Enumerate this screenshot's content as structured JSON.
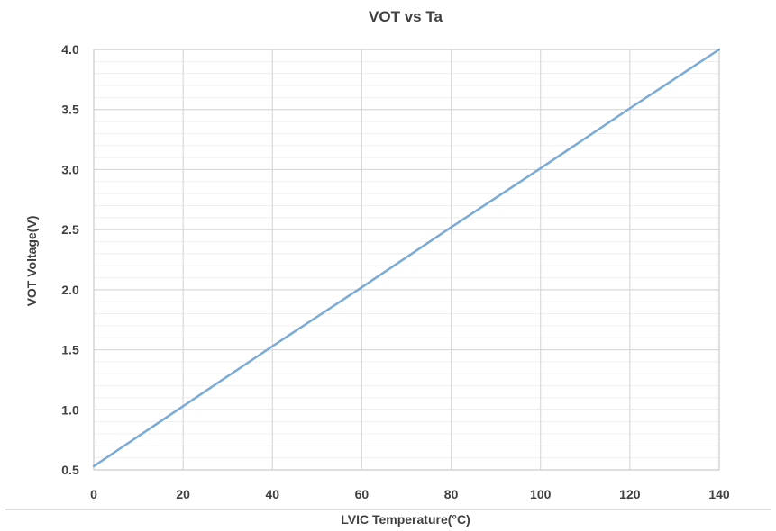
{
  "chart_data": {
    "type": "line",
    "title": "VOT vs Ta",
    "xlabel": "LVIC Temperature(°C)",
    "ylabel": "VOT Voltage(V)",
    "xlim": [
      0,
      140
    ],
    "ylim": [
      0.5,
      4.0
    ],
    "x_ticks": [
      "0",
      "20",
      "40",
      "60",
      "80",
      "100",
      "120",
      "140"
    ],
    "y_ticks": [
      "0.5",
      "1.0",
      "1.5",
      "2.0",
      "2.5",
      "3.0",
      "3.5",
      "4.0"
    ],
    "grid": true,
    "legend": "none",
    "series": [
      {
        "x": [
          0,
          20,
          40,
          60,
          80,
          100,
          120,
          140
        ],
        "values": [
          0.53,
          1.03,
          1.53,
          2.02,
          2.52,
          3.01,
          3.51,
          4.0
        ],
        "color": "#7aaad8"
      }
    ]
  }
}
